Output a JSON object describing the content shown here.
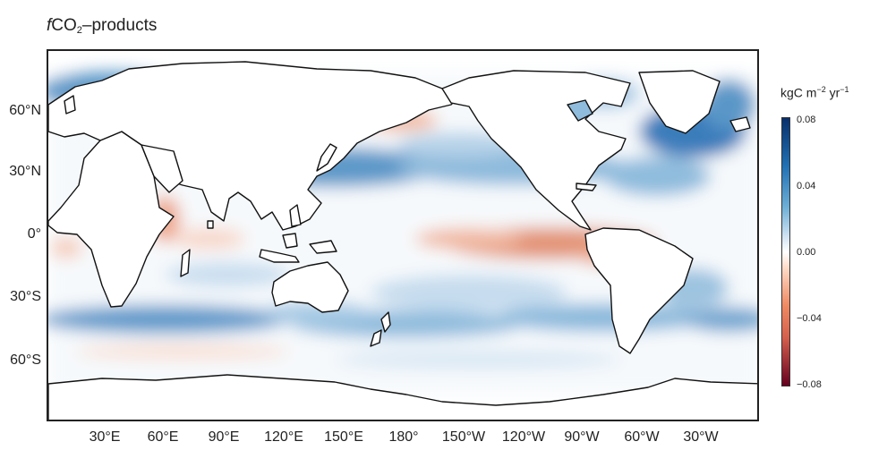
{
  "title": {
    "italic": "f",
    "main": "CO",
    "sub": "2",
    "suffix": "–products"
  },
  "map": {
    "y_labels": [
      "60°N",
      "30°N",
      "0°",
      "30°S",
      "60°S"
    ],
    "x_labels": [
      "30°E",
      "60°E",
      "90°E",
      "120°E",
      "150°E",
      "180°",
      "150°W",
      "120°W",
      "90°W",
      "60°W",
      "30°W"
    ]
  },
  "colorbar": {
    "units_prefix": "kgC m",
    "units_exp1": "−2",
    "units_mid": " yr",
    "units_exp2": "−1",
    "ticks": [
      "0.08",
      "0.04",
      "0.00",
      "−0.04",
      "−0.08"
    ],
    "colormap": "RdBu",
    "range": [
      -0.08,
      0.08
    ]
  }
}
